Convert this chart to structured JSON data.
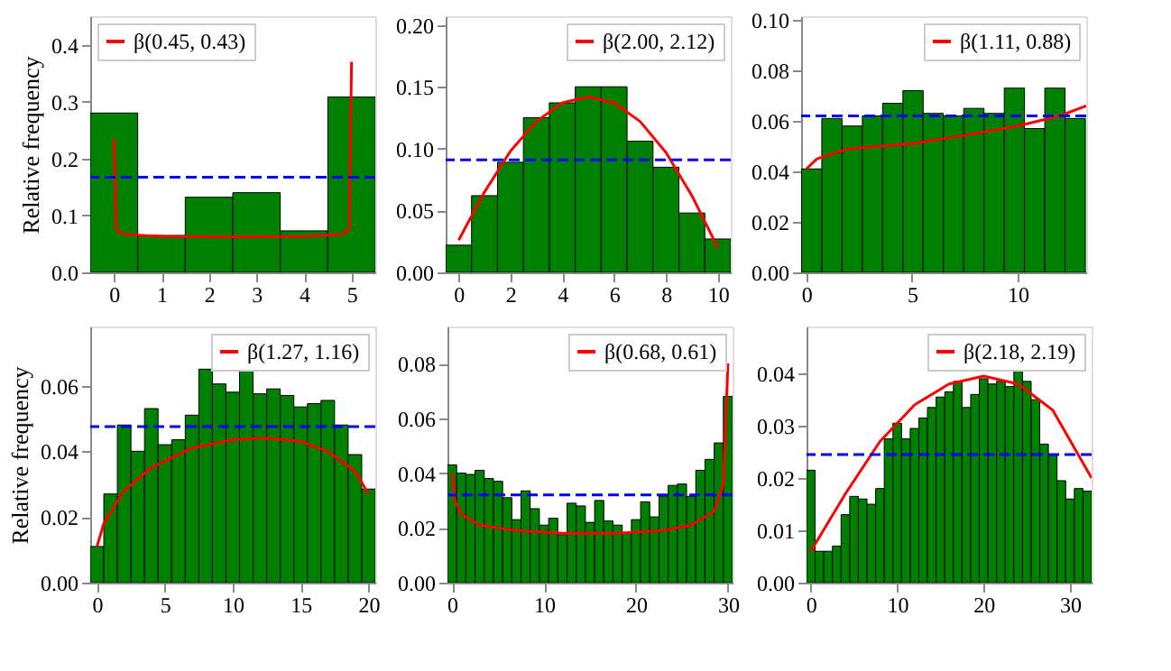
{
  "chart_data": [
    {
      "type": "histogram",
      "ylabel": "Relative frequency",
      "xlim": [
        -0.5,
        5.5
      ],
      "xticks": [
        0,
        1,
        2,
        3,
        4,
        5
      ],
      "ylim": [
        0,
        0.45
      ],
      "yticks": [
        {
          "value": 0,
          "label": "0.0"
        },
        0.1,
        0.2,
        0.3,
        0.4
      ],
      "legend": "top left",
      "series": [
        {
          "type": "histogram",
          "color": "#008000",
          "bins": [
            -0.5,
            0.5,
            1.5,
            2.5,
            3.5,
            4.5,
            5.5
          ],
          "values": [
            0.28,
            0.065,
            0.132,
            0.14,
            0.073,
            0.308
          ]
        },
        {
          "type": "line",
          "name": "β(0.45, 0.43)",
          "color": "#ff0000",
          "x": [
            0,
            0.05,
            0.2,
            1,
            2.5,
            4,
            4.8,
            4.95,
            5
          ],
          "values": [
            0.235,
            0.075,
            0.067,
            0.063,
            0.062,
            0.063,
            0.067,
            0.075,
            0.37
          ]
        }
      ],
      "ref_lines": [
        {
          "axis": "y",
          "value": 0.167,
          "color": "#0000ff",
          "line_style": "dashed"
        }
      ]
    },
    {
      "type": "histogram",
      "xlim": [
        -0.5,
        10.5
      ],
      "xticks": [
        0,
        2,
        4,
        6,
        8,
        10
      ],
      "ylim": [
        0,
        0.207
      ],
      "yticks": [
        {
          "value": 0,
          "label": "0.00"
        },
        0.05,
        {
          "value": 0.1,
          "label": "0.10"
        },
        0.15,
        {
          "value": 0.2,
          "label": "0.20"
        }
      ],
      "legend": "top right",
      "series": [
        {
          "type": "histogram",
          "color": "#008000",
          "bins": [
            -0.5,
            0.5,
            1.5,
            2.5,
            3.5,
            4.5,
            5.5,
            6.5,
            7.5,
            8.5,
            9.5,
            10.5
          ],
          "values": [
            0.022,
            0.062,
            0.089,
            0.125,
            0.137,
            0.15,
            0.15,
            0.106,
            0.085,
            0.048,
            0.027
          ]
        },
        {
          "type": "line",
          "name": "β(2.00, 2.12)",
          "color": "#ff0000",
          "x": [
            0,
            1,
            2,
            3,
            4,
            5,
            6,
            7,
            8,
            9,
            10
          ],
          "values": [
            0.026,
            0.065,
            0.098,
            0.122,
            0.137,
            0.142,
            0.137,
            0.122,
            0.097,
            0.062,
            0.02
          ]
        }
      ],
      "ref_lines": [
        {
          "axis": "y",
          "value": 0.091,
          "color": "#0000ff",
          "line_style": "dashed"
        }
      ]
    },
    {
      "type": "histogram",
      "xlim": [
        -0.25,
        13.25
      ],
      "xticks": [
        0,
        5,
        10
      ],
      "ylim": [
        0,
        0.1015
      ],
      "yticks": [
        {
          "value": 0,
          "label": "0.00"
        },
        0.02,
        0.04,
        0.06,
        0.08,
        {
          "value": 0.1,
          "label": "0.10"
        }
      ],
      "legend": "top right",
      "series": [
        {
          "type": "histogram",
          "color": "#008000",
          "bins": [
            -0.23,
            0.73,
            1.69,
            2.65,
            3.61,
            4.57,
            5.53,
            6.49,
            7.45,
            8.41,
            9.37,
            10.33,
            11.29,
            12.25,
            13.21
          ],
          "values": [
            0.041,
            0.061,
            0.058,
            0.062,
            0.067,
            0.072,
            0.063,
            0.062,
            0.065,
            0.063,
            0.073,
            0.057,
            0.073,
            0.061
          ]
        },
        {
          "type": "line",
          "name": "β(1.11, 0.88)",
          "color": "#ff0000",
          "x": [
            0,
            0.5,
            2,
            5,
            8,
            10,
            12,
            13.25
          ],
          "values": [
            0.041,
            0.045,
            0.049,
            0.051,
            0.055,
            0.058,
            0.062,
            0.066
          ]
        }
      ],
      "ref_lines": [
        {
          "axis": "y",
          "value": 0.062,
          "color": "#0000ff",
          "line_style": "dashed"
        }
      ]
    },
    {
      "type": "histogram",
      "ylabel": "Relative frequency",
      "xlim": [
        -0.5,
        20.5
      ],
      "xticks": [
        0,
        5,
        10,
        15,
        20
      ],
      "ylim": [
        0,
        0.078
      ],
      "yticks": [
        {
          "value": 0,
          "label": "0.00"
        },
        0.02,
        0.04,
        0.06
      ],
      "legend": "top right",
      "series": [
        {
          "type": "histogram",
          "color": "#008000",
          "bins": [
            -0.5,
            0.5,
            1.5,
            2.5,
            3.5,
            4.5,
            5.5,
            6.5,
            7.5,
            8.5,
            9.5,
            10.5,
            11.5,
            12.5,
            13.5,
            14.5,
            15.5,
            16.5,
            17.5,
            18.5,
            19.5,
            20.5
          ],
          "values": [
            0.011,
            0.027,
            0.048,
            0.04,
            0.053,
            0.042,
            0.0435,
            0.051,
            0.065,
            0.0605,
            0.058,
            0.065,
            0.0575,
            0.059,
            0.057,
            0.0535,
            0.0545,
            0.0555,
            0.048,
            0.039,
            0.0285
          ]
        },
        {
          "type": "line",
          "name": "β(1.27, 1.16)",
          "color": "#ff0000",
          "x": [
            0,
            0.5,
            2,
            4,
            7,
            10,
            12.5,
            15,
            17,
            19,
            20
          ],
          "values": [
            0.011,
            0.018,
            0.028,
            0.035,
            0.041,
            0.0435,
            0.044,
            0.043,
            0.04,
            0.034,
            0.027
          ]
        }
      ],
      "ref_lines": [
        {
          "axis": "y",
          "value": 0.0475,
          "color": "#0000ff",
          "line_style": "dashed"
        }
      ]
    },
    {
      "type": "histogram",
      "xlim": [
        -0.5,
        30.5
      ],
      "xticks": [
        0,
        10,
        20,
        30
      ],
      "ylim": [
        0,
        0.0935
      ],
      "yticks": [
        {
          "value": 0,
          "label": "0.00"
        },
        0.02,
        0.04,
        0.06,
        0.08
      ],
      "legend": "top right",
      "series": [
        {
          "type": "histogram",
          "color": "#008000",
          "bins": [
            -0.5,
            0.5,
            1.5,
            2.5,
            3.5,
            4.5,
            5.5,
            6.5,
            7.5,
            8.5,
            9.5,
            10.5,
            11.5,
            12.5,
            13.5,
            14.5,
            15.5,
            16.5,
            17.5,
            18.5,
            19.5,
            20.5,
            21.5,
            22.5,
            23.5,
            24.5,
            25.5,
            26.5,
            27.5,
            28.5,
            29.5,
            30.5
          ],
          "values": [
            0.043,
            0.04,
            0.0395,
            0.041,
            0.038,
            0.037,
            0.031,
            0.023,
            0.0335,
            0.027,
            0.021,
            0.0235,
            0.0175,
            0.029,
            0.028,
            0.022,
            0.03,
            0.0225,
            0.021,
            0.018,
            0.023,
            0.0295,
            0.024,
            0.0315,
            0.0355,
            0.036,
            0.0315,
            0.041,
            0.045,
            0.051,
            0.068
          ]
        },
        {
          "type": "line",
          "name": "β(0.68, 0.61)",
          "color": "#ff0000",
          "x": [
            0,
            0.3,
            1,
            3,
            7,
            12,
            18,
            23,
            26,
            28.5,
            29.5,
            30
          ],
          "values": [
            0.04,
            0.03,
            0.025,
            0.021,
            0.019,
            0.018,
            0.018,
            0.019,
            0.021,
            0.026,
            0.036,
            0.08
          ]
        }
      ],
      "ref_lines": [
        {
          "axis": "y",
          "value": 0.032,
          "color": "#0000ff",
          "line_style": "dashed"
        }
      ]
    },
    {
      "type": "histogram",
      "xlim": [
        -0.5,
        32.5
      ],
      "xticks": [
        0,
        10,
        20,
        30
      ],
      "ylim": [
        0,
        0.049
      ],
      "yticks": [
        {
          "value": 0,
          "label": "0.00"
        },
        0.01,
        0.02,
        0.03,
        0.04
      ],
      "legend": "top right",
      "series": [
        {
          "type": "histogram",
          "color": "#008000",
          "bins": [
            -0.5,
            0.5,
            1.5,
            2.5,
            3.5,
            4.5,
            5.5,
            6.5,
            7.5,
            8.5,
            9.5,
            10.5,
            11.5,
            12.5,
            13.5,
            14.5,
            15.5,
            16.5,
            17.5,
            18.5,
            19.5,
            20.5,
            21.5,
            22.5,
            23.5,
            24.5,
            25.5,
            26.5,
            27.5,
            28.5,
            29.5,
            30.5,
            31.5,
            32.5
          ],
          "values": [
            0.0215,
            0.006,
            0.006,
            0.007,
            0.013,
            0.0165,
            0.016,
            0.015,
            0.018,
            0.0275,
            0.0305,
            0.0275,
            0.0295,
            0.0315,
            0.0335,
            0.0355,
            0.0365,
            0.0385,
            0.0335,
            0.036,
            0.039,
            0.038,
            0.0385,
            0.0375,
            0.0405,
            0.0385,
            0.035,
            0.0265,
            0.0245,
            0.0195,
            0.016,
            0.018,
            0.0175
          ]
        },
        {
          "type": "line",
          "name": "β(2.18, 2.19)",
          "color": "#ff0000",
          "x": [
            0,
            4,
            8,
            12,
            16,
            20,
            24,
            28,
            32.5
          ],
          "values": [
            0.006,
            0.017,
            0.027,
            0.034,
            0.038,
            0.0395,
            0.038,
            0.033,
            0.02
          ]
        }
      ],
      "ref_lines": [
        {
          "axis": "y",
          "value": 0.0245,
          "color": "#0000ff",
          "line_style": "dashed"
        }
      ]
    }
  ]
}
